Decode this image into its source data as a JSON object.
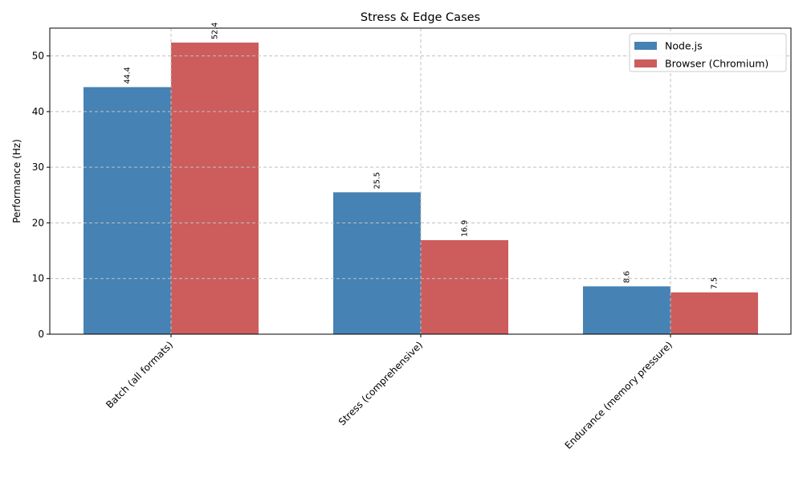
{
  "chart_data": {
    "type": "bar",
    "title": "Stress & Edge Cases",
    "xlabel": "",
    "ylabel": "Performance (Hz)",
    "ylim": [
      0,
      55
    ],
    "yticks": [
      0,
      10,
      20,
      30,
      40,
      50
    ],
    "grid": true,
    "legend_position": "top-right",
    "categories": [
      "Batch (all formats)",
      "Stress (comprehensive)",
      "Endurance (memory pressure)"
    ],
    "series": [
      {
        "name": "Node.js",
        "color": "#4682b4",
        "values": [
          44.4,
          25.5,
          8.6
        ]
      },
      {
        "name": "Browser (Chromium)",
        "color": "#cd5c5c",
        "values": [
          52.4,
          16.9,
          7.5
        ]
      }
    ]
  }
}
